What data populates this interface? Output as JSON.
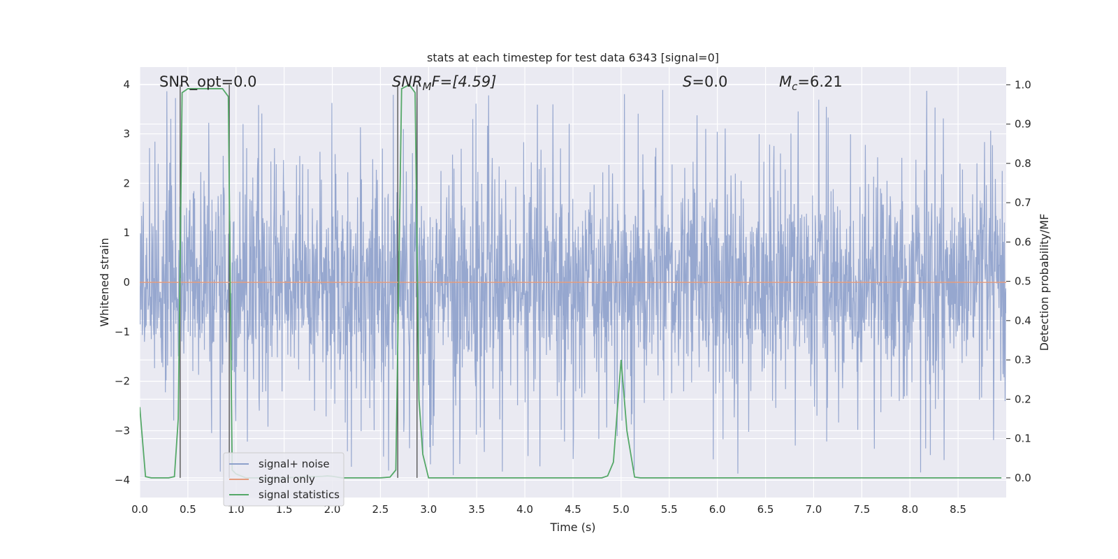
{
  "chart_data": {
    "type": "line",
    "title": "stats at each timestep for test data 6343 [signal=0]",
    "xlabel": "Time (s)",
    "ylabel": "Whitened strain",
    "ylabel_right": "Detection probability/MF",
    "xlim": [
      0.0,
      9.0
    ],
    "ylim": [
      -4.35,
      4.35
    ],
    "ylim_right": [
      -0.05,
      1.045
    ],
    "x_ticks": [
      "0.0",
      "0.5",
      "1.0",
      "1.5",
      "2.0",
      "2.5",
      "3.0",
      "3.5",
      "4.0",
      "4.5",
      "5.0",
      "5.5",
      "6.0",
      "6.5",
      "7.0",
      "7.5",
      "8.0",
      "8.5"
    ],
    "y_ticks": [
      "4",
      "3",
      "2",
      "1",
      "0",
      "−1",
      "−2",
      "−3",
      "−4"
    ],
    "y_ticks_right": [
      "1.0",
      "0.9",
      "0.8",
      "0.7",
      "0.6",
      "0.5",
      "0.4",
      "0.3",
      "0.2",
      "0.1",
      "0.0"
    ],
    "grid": true,
    "legend_position": "lower-left",
    "annotations": [
      {
        "id": "snr-opt",
        "text": "SNR_opt=0.0"
      },
      {
        "id": "snr-mf",
        "text": "SNR",
        "sub": "M",
        "rest": "F=[4.59]"
      },
      {
        "id": "s-value",
        "text": "S",
        "rest": "=0.0"
      },
      {
        "id": "mc-value",
        "text": "M",
        "sub": "c",
        "rest": "=6.21"
      }
    ],
    "vertical_markers": [
      0.42,
      0.93,
      2.68,
      2.88
    ],
    "series": [
      {
        "name": "signal+ noise",
        "color": "#8da0cb",
        "axis": "left",
        "description": "whitened strain noise, sample rate high",
        "amplitude": 1.6
      },
      {
        "name": "signal only",
        "color": "#e49c7f",
        "axis": "left",
        "x": [
          0.0,
          9.0
        ],
        "y": [
          0.0,
          0.0
        ]
      },
      {
        "name": "signal statistics",
        "color": "#55a868",
        "axis": "right",
        "x": [
          0.0,
          0.06,
          0.12,
          0.2,
          0.3,
          0.36,
          0.4,
          0.44,
          0.5,
          0.6,
          0.7,
          0.8,
          0.86,
          0.92,
          0.96,
          1.0,
          1.1,
          1.5,
          1.9,
          1.95,
          2.0,
          2.1,
          2.5,
          2.6,
          2.66,
          2.72,
          2.8,
          2.86,
          2.9,
          2.94,
          3.0,
          3.5,
          4.0,
          4.5,
          4.8,
          4.86,
          4.92,
          5.0,
          5.06,
          5.14,
          5.2,
          5.5,
          6.0,
          7.0,
          8.0,
          8.95
        ],
        "y": [
          0.18,
          0.003,
          0.0,
          0.0,
          0.0,
          0.003,
          0.15,
          0.98,
          0.99,
          0.99,
          0.99,
          0.99,
          0.99,
          0.97,
          0.02,
          0.01,
          0.0,
          0.0,
          0.004,
          0.005,
          0.004,
          0.0,
          0.0,
          0.002,
          0.02,
          0.99,
          1.0,
          0.98,
          0.2,
          0.06,
          0.0,
          0.0,
          0.0,
          0.0,
          0.0,
          0.005,
          0.04,
          0.3,
          0.12,
          0.002,
          0.0,
          0.0,
          0.0,
          0.0,
          0.0,
          0.0
        ]
      }
    ]
  }
}
